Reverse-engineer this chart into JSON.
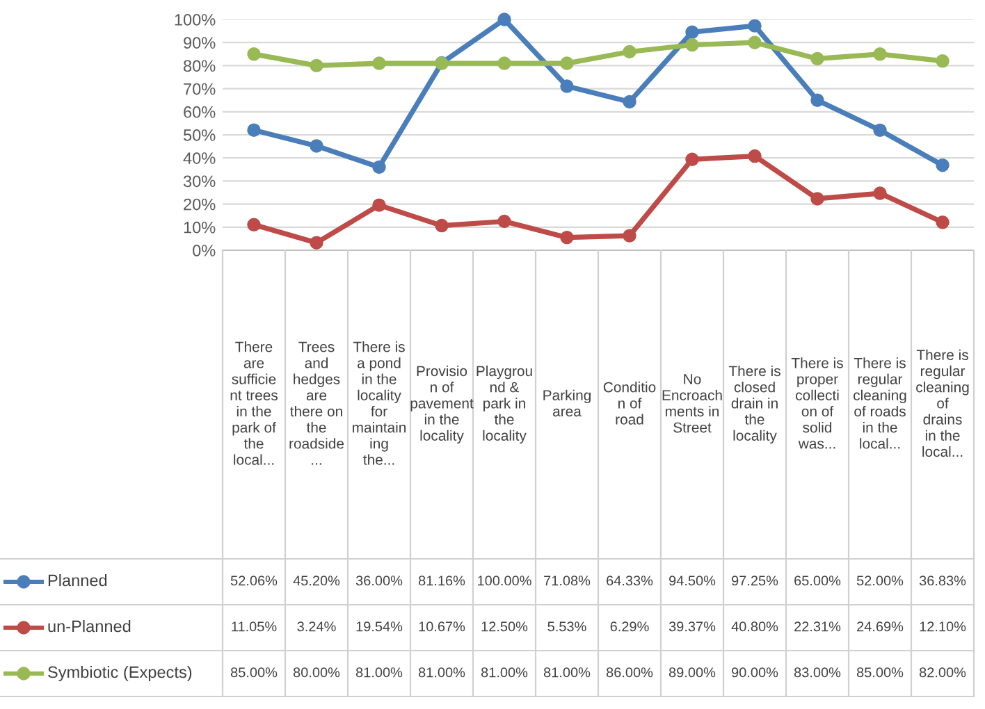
{
  "chart_data": {
    "type": "line",
    "categories": [
      "There are sufficient trees in the park of the local...",
      "Trees and hedges are there on the roadside...",
      "There is a pond in the locality for maintaining the...",
      "Provision of pavement in the locality",
      "Playground & park in the locality",
      "Parking area",
      "Condition of road",
      "No Encroachments in Street",
      "There is closed drain in the locality",
      "There is proper collection of solid was...",
      "There is regular cleaning of roads in the local...",
      "There is regular cleaning of drains in the local..."
    ],
    "series": [
      {
        "name": "Planned",
        "color": "#4a7ebb",
        "values": [
          52.06,
          45.2,
          36.0,
          81.16,
          100.0,
          71.08,
          64.33,
          94.5,
          97.25,
          65.0,
          52.0,
          36.83
        ],
        "value_labels": [
          "52.06%",
          "45.20%",
          "36.00%",
          "81.16%",
          "100.00%",
          "71.08%",
          "64.33%",
          "94.50%",
          "97.25%",
          "65.00%",
          "52.00%",
          "36.83%"
        ]
      },
      {
        "name": "un-Planned",
        "color": "#be4b48",
        "values": [
          11.05,
          3.24,
          19.54,
          10.67,
          12.5,
          5.53,
          6.29,
          39.37,
          40.8,
          22.31,
          24.69,
          12.1
        ],
        "value_labels": [
          "11.05%",
          "3.24%",
          "19.54%",
          "10.67%",
          "12.50%",
          "5.53%",
          "6.29%",
          "39.37%",
          "40.80%",
          "22.31%",
          "24.69%",
          "12.10%"
        ]
      },
      {
        "name": "Symbiotic (Expects)",
        "color": "#98b954",
        "values": [
          85.0,
          80.0,
          81.0,
          81.0,
          81.0,
          81.0,
          86.0,
          89.0,
          90.0,
          83.0,
          85.0,
          82.0
        ],
        "value_labels": [
          "85.00%",
          "80.00%",
          "81.00%",
          "81.00%",
          "81.00%",
          "81.00%",
          "86.00%",
          "89.00%",
          "90.00%",
          "83.00%",
          "85.00%",
          "82.00%"
        ]
      }
    ],
    "ylim": [
      0,
      100
    ],
    "yticks": [
      {
        "value": 0,
        "label": "0%"
      },
      {
        "value": 10,
        "label": "10%"
      },
      {
        "value": 20,
        "label": "20%"
      },
      {
        "value": 30,
        "label": "30%"
      },
      {
        "value": 40,
        "label": "40%"
      },
      {
        "value": 50,
        "label": "50%"
      },
      {
        "value": 60,
        "label": "60%"
      },
      {
        "value": 70,
        "label": "70%"
      },
      {
        "value": 80,
        "label": "80%"
      },
      {
        "value": 90,
        "label": "90%"
      },
      {
        "value": 100,
        "label": "100%"
      }
    ],
    "grid": "y",
    "marker": "circle",
    "line_style": "solid",
    "legend": "left"
  }
}
